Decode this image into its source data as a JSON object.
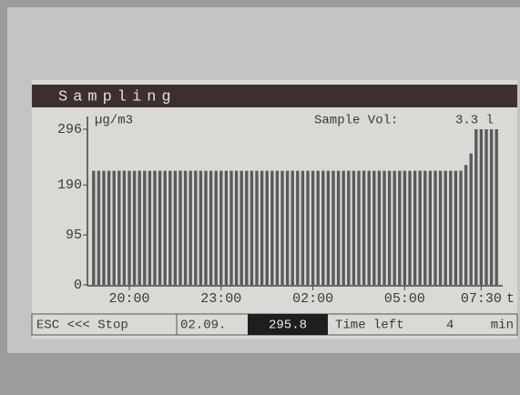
{
  "chart_data": {
    "type": "bar",
    "title": "Sampling",
    "y_unit": "µg/m3",
    "x_label": "t",
    "sample_volume": {
      "label": "Sample Vol:",
      "value": "3.3 l"
    },
    "categories": [
      null,
      null,
      null,
      null,
      null,
      null,
      null,
      "20:00",
      null,
      null,
      null,
      null,
      null,
      null,
      null,
      null,
      null,
      null,
      null,
      null,
      null,
      null,
      null,
      null,
      null,
      "23:00",
      null,
      null,
      null,
      null,
      null,
      null,
      null,
      null,
      null,
      null,
      null,
      null,
      null,
      null,
      null,
      null,
      null,
      "02:00",
      null,
      null,
      null,
      null,
      null,
      null,
      null,
      null,
      null,
      null,
      null,
      null,
      null,
      null,
      null,
      null,
      null,
      "05:00",
      null,
      null,
      null,
      null,
      null,
      null,
      null,
      null,
      null,
      null,
      null,
      null,
      null,
      null,
      "07:30",
      null,
      null,
      null
    ],
    "values": [
      217,
      217,
      217,
      217,
      217,
      217,
      217,
      217,
      217,
      217,
      217,
      217,
      217,
      217,
      217,
      217,
      217,
      217,
      217,
      217,
      217,
      217,
      217,
      217,
      217,
      217,
      217,
      217,
      217,
      217,
      217,
      217,
      217,
      217,
      217,
      217,
      217,
      217,
      217,
      217,
      217,
      217,
      217,
      217,
      217,
      217,
      217,
      217,
      217,
      217,
      217,
      217,
      217,
      217,
      217,
      217,
      217,
      217,
      217,
      217,
      217,
      217,
      217,
      217,
      217,
      217,
      217,
      217,
      217,
      217,
      217,
      217,
      217,
      228,
      250,
      296,
      296,
      296,
      296,
      296
    ],
    "color": "#5a5a5a",
    "ylim": [
      0,
      296
    ],
    "yticks": [
      0,
      95,
      190,
      296
    ],
    "grid": false
  },
  "status_bar": {
    "escape": "ESC <<< Stop",
    "date": "02.09.",
    "reading": "295.8",
    "time_left_label": "Time left",
    "time_left_value": "4",
    "time_left_unit": "min"
  }
}
